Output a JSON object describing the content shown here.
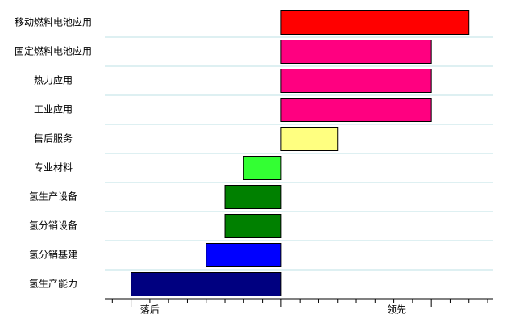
{
  "chart_data": {
    "type": "bar",
    "orientation": "horizontal",
    "categories": [
      "移动燃料电池应用",
      "固定燃料电池应用",
      "热力应用",
      "工业应用",
      "售后服务",
      "专业材料",
      "氢生产设备",
      "氢分销设备",
      "氢分销基建",
      "氢生产能力"
    ],
    "values": [
      10,
      8,
      8,
      8,
      3,
      -2,
      -3,
      -3,
      -4,
      -8
    ],
    "colors": [
      "#ff0000",
      "#ff0080",
      "#ff0080",
      "#ff0080",
      "#ffff80",
      "#33ff33",
      "#008000",
      "#008000",
      "#0000ff",
      "#000080"
    ],
    "xlim": [
      -9.4,
      11.3
    ],
    "xticks": [
      -9,
      -8,
      -7,
      -6,
      -5,
      -4,
      -3,
      -2,
      -1,
      0,
      1,
      2,
      3,
      4,
      5,
      6,
      7,
      8,
      9,
      10,
      11
    ],
    "major_xticks": [
      -8,
      0,
      8
    ],
    "x_end_labels": [
      "落后",
      "领先"
    ],
    "grid": true,
    "grid_color": "#d4ecee"
  }
}
